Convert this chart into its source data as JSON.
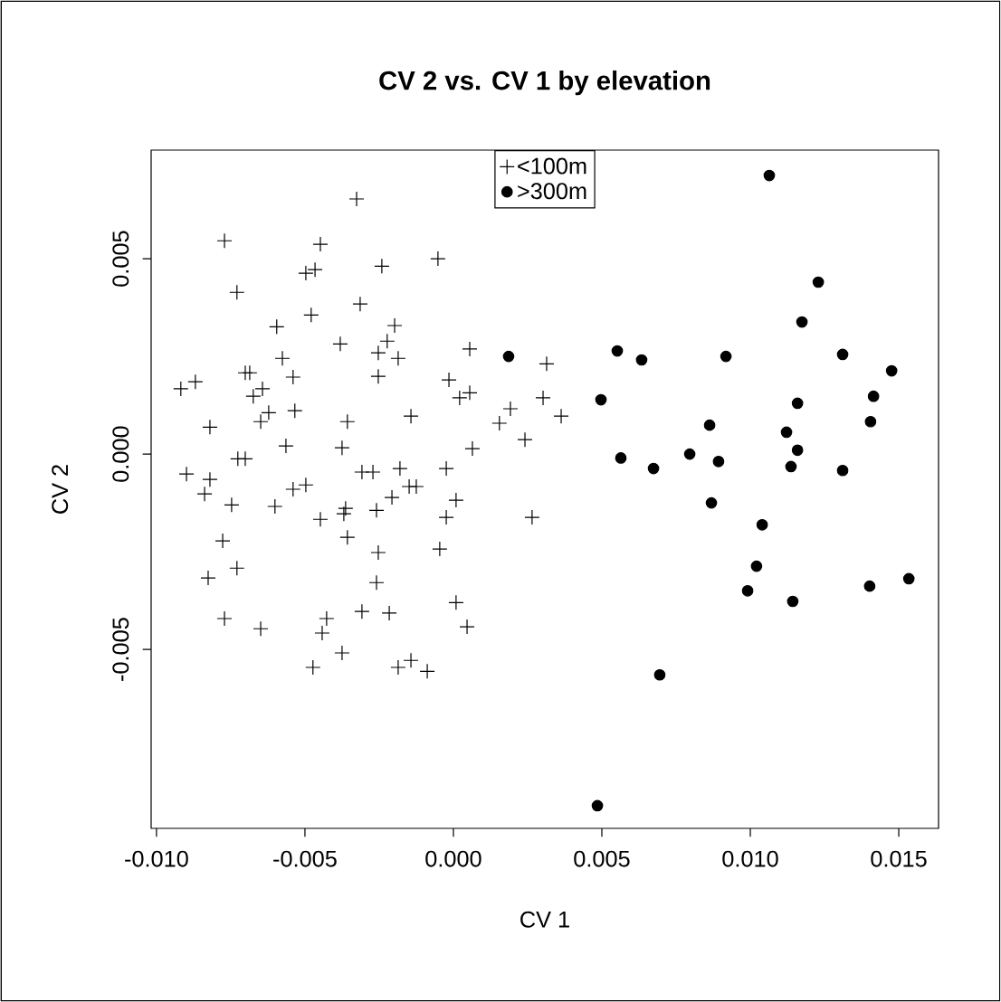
{
  "chart_data": {
    "type": "scatter",
    "title": "CV 2 vs. CV 1 by elevation",
    "xlabel": "CV 1",
    "ylabel": "CV 2",
    "xlim": [
      -0.01018,
      0.01634
    ],
    "ylim": [
      -0.00958,
      0.00778
    ],
    "xticks": [
      {
        "value": -0.01,
        "label": "-0.010"
      },
      {
        "value": -0.005,
        "label": "-0.005"
      },
      {
        "value": 0,
        "label": "0.000"
      },
      {
        "value": 0.005,
        "label": "0.005"
      },
      {
        "value": 0.01,
        "label": "0.010"
      },
      {
        "value": 0.015,
        "label": "0.015"
      }
    ],
    "yticks": [
      {
        "value": -0.005,
        "label": "-0.005"
      },
      {
        "value": 0,
        "label": "0.000"
      },
      {
        "value": 0.005,
        "label": "0.005"
      }
    ],
    "legend": "top",
    "series": [
      {
        "name": "<100m",
        "color": "#000000",
        "marker": "cross",
        "x": [
          -0.00326,
          -0.00771,
          -0.00448,
          -0.00497,
          -0.00466,
          -0.00241,
          -0.00052,
          -0.00729,
          -0.00314,
          -0.00479,
          -0.00595,
          -0.00381,
          -0.00198,
          -0.00223,
          -0.00253,
          -0.00186,
          -0.00576,
          -0.0054,
          -0.00701,
          -0.00686,
          -0.00253,
          -0.00015,
          -0.00918,
          -0.00869,
          -0.00674,
          -0.00643,
          -0.00622,
          -0.00649,
          -0.00534,
          -0.0082,
          -0.00357,
          -0.00143,
          -0.00564,
          -0.00375,
          -0.00726,
          -0.00701,
          -0.00899,
          -0.0082,
          -0.0054,
          -0.00497,
          -0.00308,
          -0.00271,
          -0.0018,
          -0.00024,
          -0.00838,
          -0.00747,
          -0.00601,
          -0.00207,
          -0.00149,
          -0.00125,
          9e-05,
          -0.00024,
          -0.00448,
          -0.00363,
          -0.00369,
          -0.00259,
          -0.00357,
          -0.00046,
          -0.00253,
          -0.00259,
          -0.00777,
          -0.00729,
          -0.00826,
          9e-05,
          -0.00771,
          -0.00649,
          -0.00427,
          -0.00442,
          -0.00308,
          -0.00216,
          -0.00375,
          -0.00473,
          -0.00143,
          -0.00186,
          -0.00088,
          0.00055,
          0.00314,
          0.00055,
          0.00021,
          0.00302,
          0.00192,
          0.00363,
          0.00155,
          0.00241,
          0.00064,
          0.00265,
          0.00046
        ],
        "values": [
          0.00653,
          0.00546,
          0.00537,
          0.00463,
          0.00472,
          0.00481,
          0.005,
          0.00414,
          0.00384,
          0.00356,
          0.00326,
          0.00282,
          0.00329,
          0.00289,
          0.00259,
          0.00245,
          0.00245,
          0.00197,
          0.00208,
          0.00208,
          0.00199,
          0.0019,
          0.00167,
          0.00185,
          0.00148,
          0.00167,
          0.00106,
          0.00083,
          0.00111,
          0.00069,
          0.00083,
          0.00097,
          0.00021,
          0.00016,
          -0.00012,
          -0.00012,
          -0.00051,
          -0.00065,
          -0.0009,
          -0.00079,
          -0.00046,
          -0.00046,
          -0.00037,
          -0.00037,
          -0.00102,
          -0.0013,
          -0.00134,
          -0.00111,
          -0.00083,
          -0.00083,
          -0.00118,
          -0.00162,
          -0.00167,
          -0.00139,
          -0.00153,
          -0.00144,
          -0.00213,
          -0.00243,
          -0.00252,
          -0.00329,
          -0.00222,
          -0.00292,
          -0.00317,
          -0.0038,
          -0.00421,
          -0.00447,
          -0.00421,
          -0.00458,
          -0.00403,
          -0.00407,
          -0.00509,
          -0.00546,
          -0.00528,
          -0.00546,
          -0.00556,
          0.00269,
          0.00231,
          0.00157,
          0.00144,
          0.00144,
          0.00116,
          0.00097,
          0.00079,
          0.00037,
          0.00014,
          -0.00162,
          -0.00442
        ]
      },
      {
        "name": ">300m",
        "color": "#000000",
        "marker": "circle",
        "x": [
          0.01064,
          0.01229,
          0.01174,
          0.00552,
          0.00634,
          0.00186,
          0.00918,
          0.01311,
          0.01476,
          0.00497,
          0.01415,
          0.01159,
          0.00863,
          0.01405,
          0.01122,
          0.01159,
          0.00564,
          0.00796,
          0.00674,
          0.00893,
          0.01137,
          0.01311,
          0.00869,
          0.0104,
          0.01021,
          0.00991,
          0.01143,
          0.01402,
          0.01534,
          0.00695,
          0.00485
        ],
        "values": [
          0.00713,
          0.0044,
          0.00338,
          0.00264,
          0.00241,
          0.0025,
          0.0025,
          0.00255,
          0.00213,
          0.00139,
          0.00148,
          0.0013,
          0.00074,
          0.00083,
          0.00056,
          0.0001,
          -0.0001,
          0.0,
          -0.00037,
          -0.00019,
          -0.00032,
          -0.00042,
          -0.00125,
          -0.00181,
          -0.00287,
          -0.0035,
          -0.00377,
          -0.00338,
          -0.00319,
          -0.00565,
          -0.009
        ]
      }
    ]
  }
}
